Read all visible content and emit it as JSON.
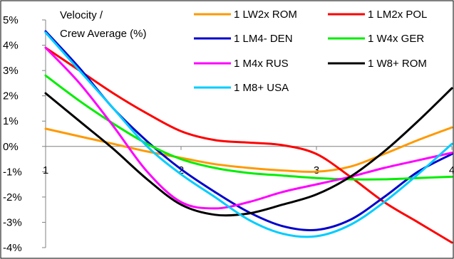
{
  "chart_data": {
    "type": "line",
    "title": "",
    "xlabel": "",
    "ylabel_lines": [
      "Velocity /",
      "Crew Average (%)"
    ],
    "xlim": [
      1,
      4
    ],
    "ylim": [
      -4,
      5
    ],
    "x_ticks": [
      {
        "value": 1,
        "label": "1"
      },
      {
        "value": 2,
        "label": "2"
      },
      {
        "value": 3,
        "label": "3"
      },
      {
        "value": 4,
        "label": "4"
      }
    ],
    "y_ticks": [
      {
        "value": 5,
        "label": "5%"
      },
      {
        "value": 4,
        "label": "4%"
      },
      {
        "value": 3,
        "label": "3%"
      },
      {
        "value": 2,
        "label": "2%"
      },
      {
        "value": 1,
        "label": "1%"
      },
      {
        "value": 0,
        "label": "0%"
      },
      {
        "value": -1,
        "label": "-1%"
      },
      {
        "value": -2,
        "label": "-2%"
      },
      {
        "value": -3,
        "label": "-3%"
      },
      {
        "value": -4,
        "label": "-4%"
      }
    ],
    "grid": false,
    "legend_position": "top-right",
    "series": [
      {
        "name": "1 LW2x ROM",
        "color": "#ff9900",
        "x": [
          1,
          1.25,
          1.5,
          1.75,
          2,
          2.25,
          2.5,
          2.75,
          3,
          3.25,
          3.5,
          3.75,
          4
        ],
        "y": [
          0.7,
          0.4,
          0.1,
          -0.2,
          -0.45,
          -0.7,
          -0.85,
          -0.95,
          -1.0,
          -0.8,
          -0.3,
          0.25,
          0.75
        ]
      },
      {
        "name": "1 LM2x POL",
        "color": "#ff0000",
        "x": [
          1,
          1.25,
          1.5,
          1.75,
          2,
          2.25,
          2.5,
          2.75,
          3,
          3.25,
          3.5,
          3.75,
          4
        ],
        "y": [
          3.9,
          3.0,
          2.1,
          1.3,
          0.6,
          0.25,
          0.15,
          0.05,
          -0.3,
          -1.2,
          -2.2,
          -3.0,
          -3.8
        ]
      },
      {
        "name": "1 LM4- DEN",
        "color": "#0000cc",
        "x": [
          1,
          1.25,
          1.5,
          1.75,
          2,
          2.25,
          2.5,
          2.75,
          3,
          3.25,
          3.5,
          3.75,
          4
        ],
        "y": [
          4.55,
          3.1,
          1.5,
          0.2,
          -0.9,
          -1.8,
          -2.6,
          -3.15,
          -3.3,
          -2.9,
          -2.0,
          -1.0,
          -0.3
        ]
      },
      {
        "name": "1 W4x GER",
        "color": "#00ee00",
        "x": [
          1,
          1.25,
          1.5,
          1.75,
          2,
          2.25,
          2.5,
          2.75,
          3,
          3.25,
          3.5,
          3.75,
          4
        ],
        "y": [
          2.8,
          1.8,
          0.9,
          0.1,
          -0.5,
          -0.85,
          -1.05,
          -1.15,
          -1.25,
          -1.3,
          -1.3,
          -1.25,
          -1.2
        ]
      },
      {
        "name": "1 M4x RUS",
        "color": "#ff00ff",
        "x": [
          1,
          1.25,
          1.5,
          1.75,
          2,
          2.25,
          2.5,
          2.75,
          3,
          3.25,
          3.5,
          3.75,
          4
        ],
        "y": [
          3.9,
          2.5,
          0.8,
          -1.0,
          -2.2,
          -2.45,
          -2.2,
          -1.8,
          -1.5,
          -1.2,
          -0.85,
          -0.55,
          -0.25
        ]
      },
      {
        "name": "1 W8+ ROM",
        "color": "#000000",
        "x": [
          1,
          1.25,
          1.5,
          1.75,
          2,
          2.25,
          2.5,
          2.75,
          3,
          3.25,
          3.5,
          3.75,
          4
        ],
        "y": [
          2.1,
          1.0,
          -0.1,
          -1.3,
          -2.3,
          -2.7,
          -2.65,
          -2.3,
          -1.9,
          -1.2,
          -0.2,
          1.0,
          2.3
        ]
      },
      {
        "name": "1 M8+ USA",
        "color": "#00ccff",
        "x": [
          1,
          1.25,
          1.5,
          1.75,
          2,
          2.25,
          2.5,
          2.75,
          3,
          3.25,
          3.5,
          3.75,
          4
        ],
        "y": [
          4.5,
          3.0,
          1.5,
          0.0,
          -1.1,
          -2.0,
          -2.9,
          -3.45,
          -3.55,
          -3.1,
          -2.2,
          -1.1,
          0.1
        ]
      }
    ]
  }
}
